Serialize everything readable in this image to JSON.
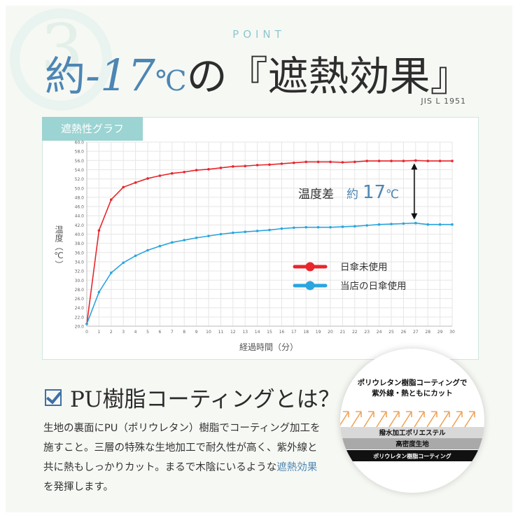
{
  "header": {
    "number": "3",
    "point_label": "POINT",
    "headline_a": "約",
    "headline_b": "-17",
    "headline_c": "℃",
    "headline_d": "の『遮熱効果』",
    "standard": "JIS L 1951"
  },
  "graph": {
    "tab_label": "遮熱性グラフ"
  },
  "chart_data": {
    "type": "line",
    "xlabel": "経過時間（分）",
    "ylabel": "温度（℃）",
    "xlim": [
      0,
      30
    ],
    "ylim": [
      20.0,
      60.0
    ],
    "grid": true,
    "legend_position": "bottom-right",
    "x": [
      0,
      1,
      2,
      3,
      4,
      5,
      6,
      7,
      8,
      9,
      10,
      11,
      12,
      13,
      14,
      15,
      16,
      17,
      18,
      19,
      20,
      21,
      22,
      23,
      24,
      25,
      26,
      27,
      28,
      29,
      30
    ],
    "series": [
      {
        "name": "日傘未使用",
        "color": "#e8262b",
        "values": [
          20.5,
          40.8,
          47.5,
          50.2,
          51.2,
          52.1,
          52.7,
          53.2,
          53.5,
          53.9,
          54.1,
          54.4,
          54.7,
          54.8,
          55.0,
          55.1,
          55.3,
          55.5,
          55.7,
          55.7,
          55.7,
          55.6,
          55.7,
          55.9,
          55.9,
          55.9,
          55.9,
          56.0,
          55.9,
          55.9,
          55.9
        ]
      },
      {
        "name": "当店の日傘使用",
        "color": "#2aa5df",
        "values": [
          20.5,
          27.4,
          31.6,
          33.8,
          35.3,
          36.5,
          37.4,
          38.2,
          38.7,
          39.2,
          39.6,
          40.0,
          40.3,
          40.5,
          40.7,
          40.9,
          41.2,
          41.4,
          41.5,
          41.5,
          41.5,
          41.6,
          41.7,
          41.9,
          42.1,
          42.2,
          42.3,
          42.4,
          42.1,
          42.1,
          42.1
        ]
      }
    ],
    "annotation": {
      "prefix": "温度差",
      "value_prefix": "約",
      "value": "17",
      "unit": "℃"
    }
  },
  "pu_section": {
    "title": "PU樹脂コーティングとは？",
    "body_1": "生地の裏面にPU（ポリウレタン）樹脂でコーティング加工を施すこと。三層の特殊な生地加工で耐久性が高く、紫外線と共に熱もしっかりカット。まるで木陰にいるような",
    "body_em": "遮熱効果",
    "body_2": "を発揮します。"
  },
  "diagram": {
    "caption_1": "ポリウレタン樹脂コーティングで",
    "caption_2": "紫外線・熱ともにカット",
    "layers": [
      {
        "label": "撥水加工ポリエステル",
        "color": "#d8d8d8",
        "text_color": "#111111"
      },
      {
        "label": "高密度生地",
        "color": "#a9a9a9",
        "text_color": "#111111"
      },
      {
        "label": "ポリウレタン樹脂コーティング",
        "color": "#111111",
        "text_color": "#ffffff"
      }
    ],
    "arrow_color": "#efa35a"
  }
}
